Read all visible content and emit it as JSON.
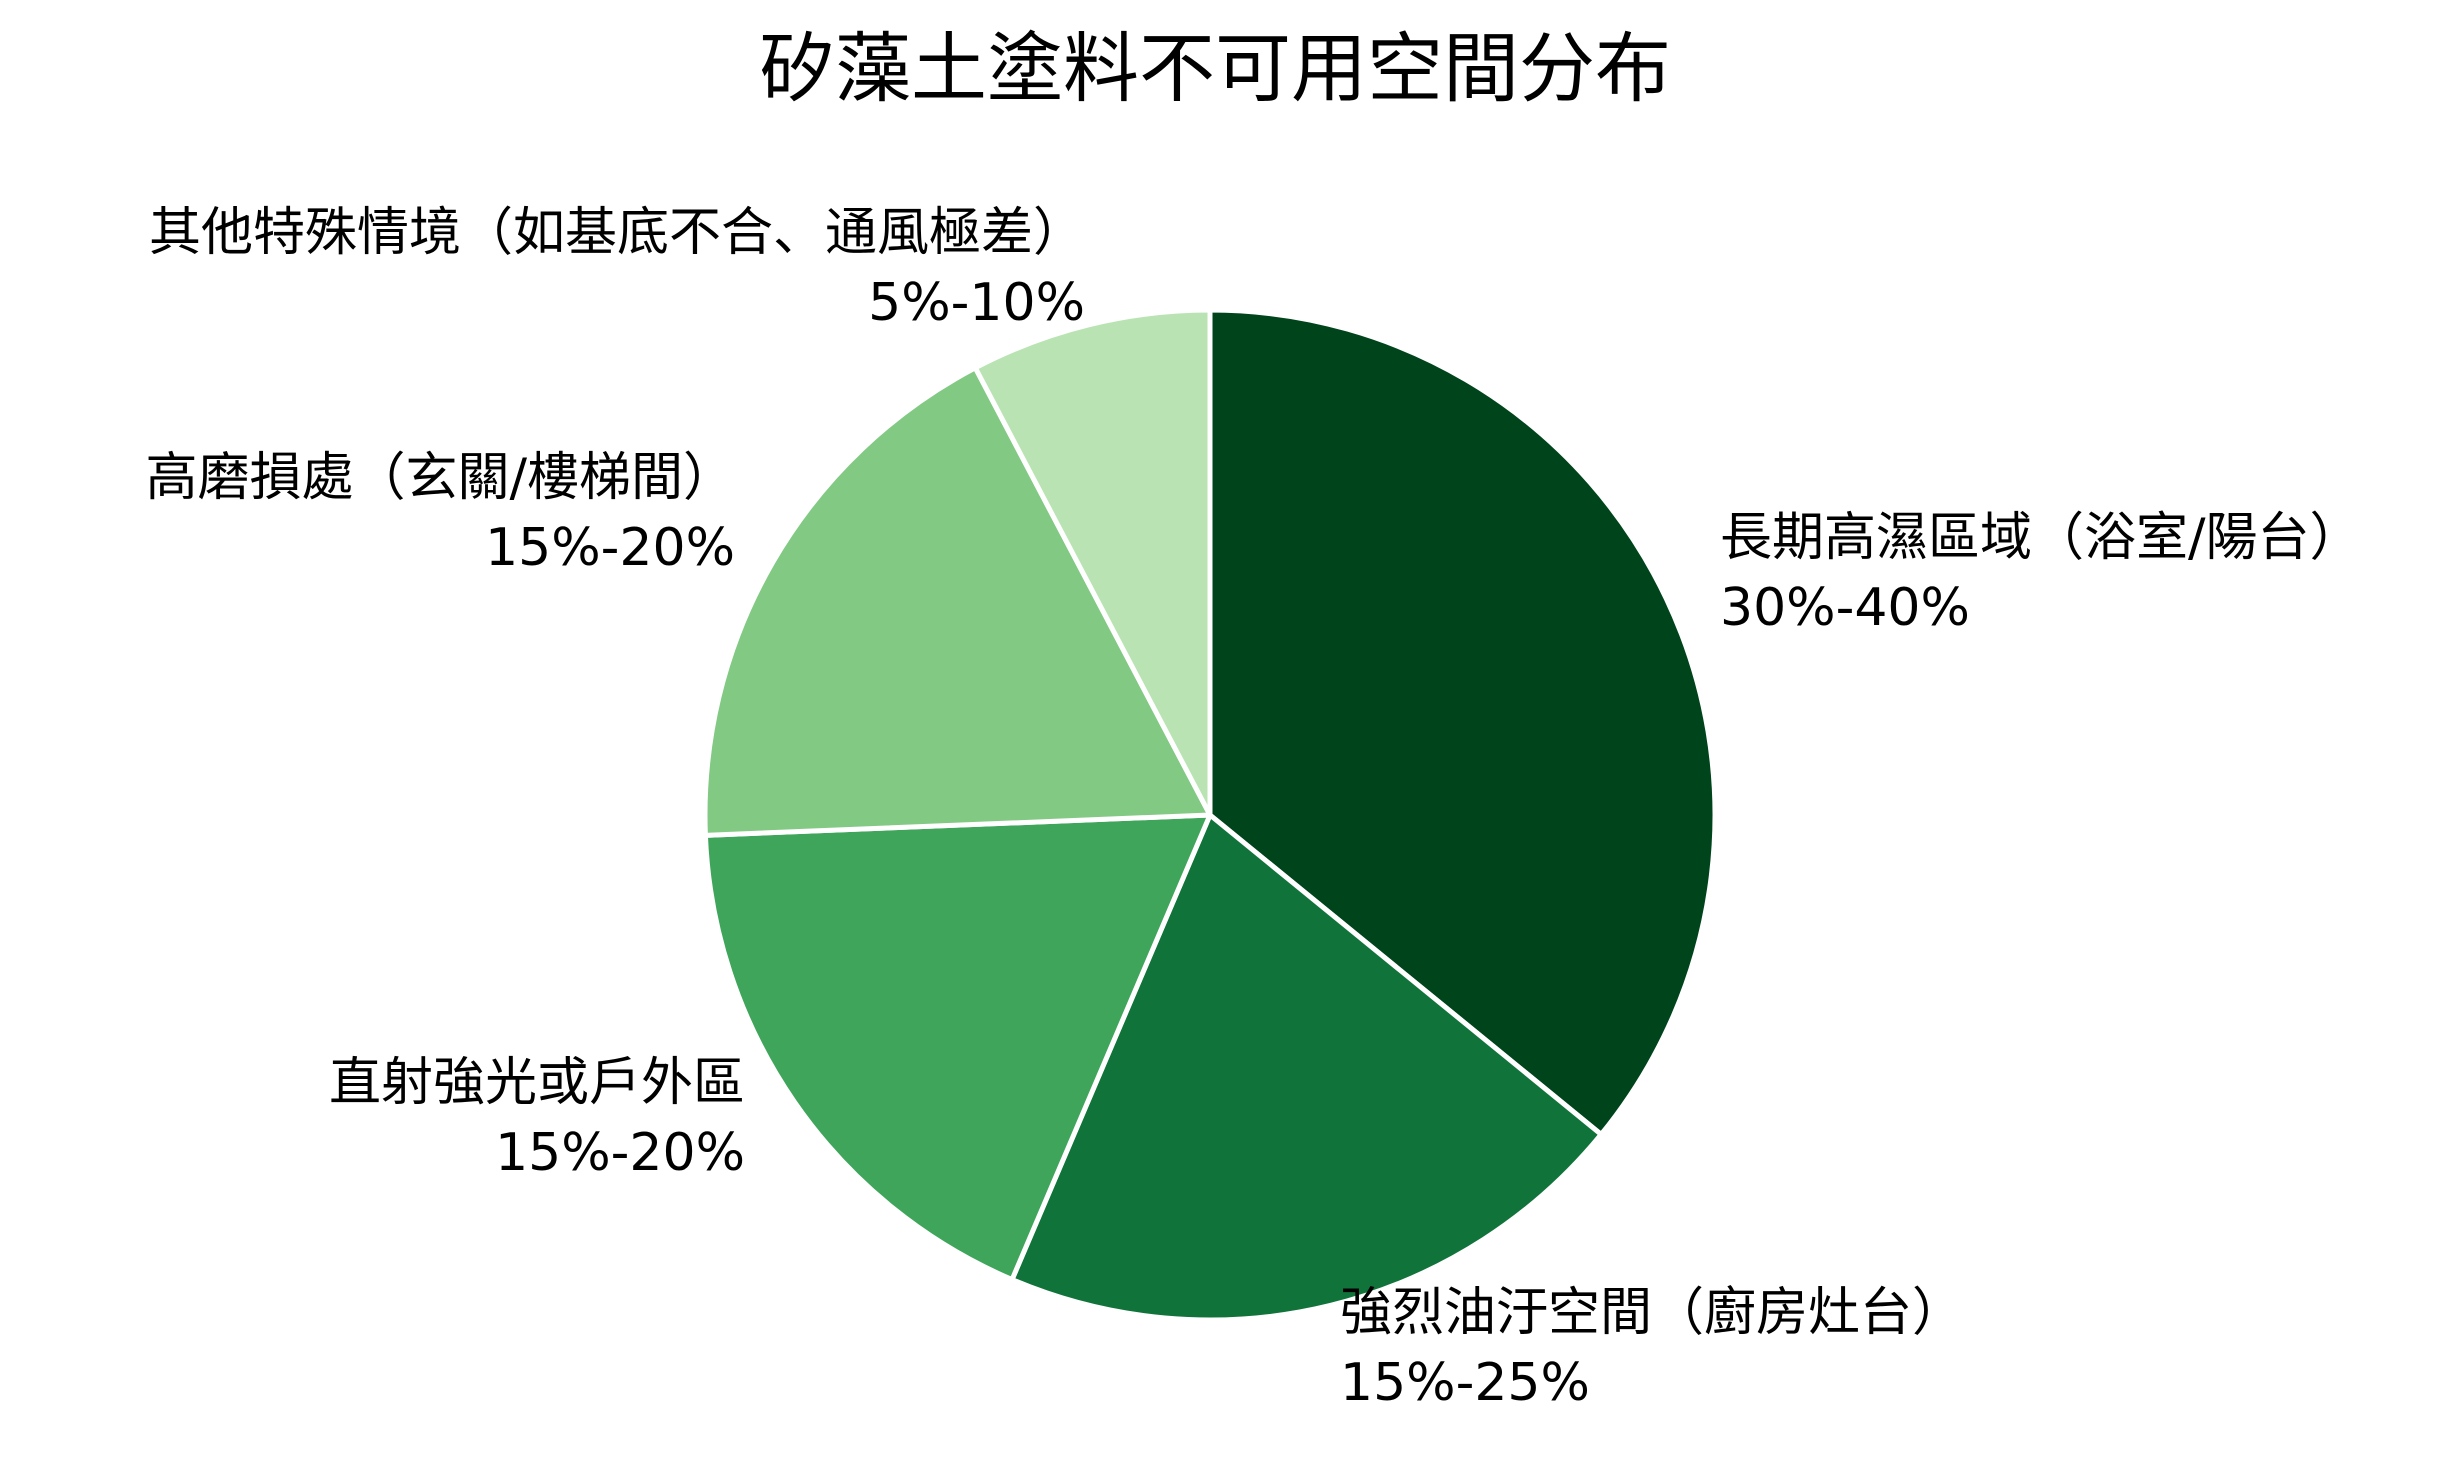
{
  "chart_data": {
    "type": "pie",
    "title": "矽藻土塗料不可用空間分布",
    "start_angle_deg": 90,
    "direction": "clockwise",
    "slices": [
      {
        "label": "長期高濕區域（浴室/陽台）",
        "range": "30%-40%",
        "value": 35,
        "color": "#00441b"
      },
      {
        "label": "強烈油汙空間（廚房灶台）",
        "range": "15%-25%",
        "value": 20,
        "color": "#10743a"
      },
      {
        "label": "直射強光或戶外區",
        "range": "15%-20%",
        "value": 17.5,
        "color": "#3ea55b"
      },
      {
        "label": "高磨損處（玄關/樓梯間）",
        "range": "15%-20%",
        "value": 17.5,
        "color": "#82c984"
      },
      {
        "label": "其他特殊情境（如基底不合、通風極差）",
        "range": "5%-10%",
        "value": 7.5,
        "color": "#b9e3b2"
      }
    ]
  }
}
